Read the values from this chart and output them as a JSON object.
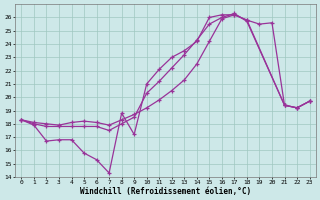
{
  "xlabel": "Windchill (Refroidissement éolien,°C)",
  "ylabel": "",
  "bg_color": "#cde8e8",
  "grid_color": "#a0c8c0",
  "line_color": "#993399",
  "xlim": [
    -0.5,
    23.5
  ],
  "ylim": [
    14,
    27
  ],
  "yticks": [
    14,
    15,
    16,
    17,
    18,
    19,
    20,
    21,
    22,
    23,
    24,
    25,
    26
  ],
  "xticks": [
    0,
    1,
    2,
    3,
    4,
    5,
    6,
    7,
    8,
    9,
    10,
    11,
    12,
    13,
    14,
    15,
    16,
    17,
    18,
    19,
    20,
    21,
    22,
    23
  ],
  "line1_x": [
    0,
    1,
    2,
    3,
    4,
    5,
    6,
    7,
    8,
    9,
    10,
    11,
    12,
    13,
    14,
    15,
    16,
    17,
    18,
    21,
    22,
    23
  ],
  "line1_y": [
    18.3,
    18.0,
    17.8,
    17.8,
    17.8,
    17.8,
    17.8,
    17.5,
    18.0,
    18.5,
    20.3,
    21.2,
    22.2,
    23.2,
    24.3,
    25.5,
    26.0,
    26.3,
    25.7,
    19.4,
    19.2,
    19.7
  ],
  "line2_x": [
    0,
    1,
    2,
    3,
    4,
    5,
    6,
    7,
    8,
    9,
    10,
    11,
    12,
    13,
    14,
    15,
    16,
    17,
    18,
    19,
    20,
    21,
    22,
    23
  ],
  "line2_y": [
    18.3,
    18.1,
    18.0,
    17.9,
    18.1,
    18.2,
    18.1,
    17.9,
    18.3,
    18.7,
    19.2,
    19.8,
    20.5,
    21.3,
    22.5,
    24.2,
    25.9,
    26.2,
    25.8,
    25.5,
    25.6,
    19.4,
    19.2,
    19.7
  ],
  "line3_x": [
    0,
    1,
    2,
    3,
    4,
    5,
    6,
    7,
    8,
    9,
    10,
    11,
    12,
    13,
    14,
    15,
    16,
    17,
    18,
    21,
    22,
    23
  ],
  "line3_y": [
    18.3,
    17.9,
    16.7,
    16.8,
    16.8,
    15.8,
    15.3,
    14.3,
    18.8,
    17.2,
    21.0,
    22.1,
    23.0,
    23.5,
    24.2,
    26.0,
    26.2,
    26.2,
    25.8,
    19.4,
    19.2,
    19.7
  ]
}
